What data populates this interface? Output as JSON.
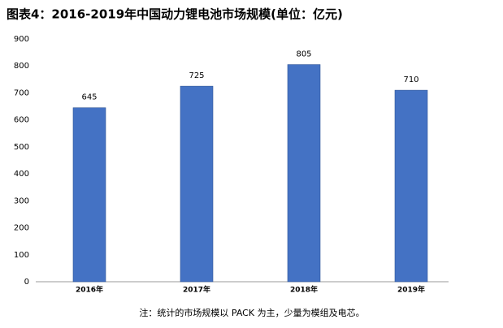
{
  "chart_data": {
    "type": "bar",
    "title": "图表4：2016-2019年中国动力锂电池市场规模(单位：亿元)",
    "categories": [
      "2016年",
      "2017年",
      "2018年",
      "2019年"
    ],
    "values": [
      645,
      725,
      805,
      710
    ],
    "color": "#4472c4",
    "ylim": [
      0,
      900
    ],
    "yticks": [
      0,
      100,
      200,
      300,
      400,
      500,
      600,
      700,
      800,
      900
    ],
    "grid": false,
    "note": "注：统计的市场规模以 PACK 为主，少量为模组及电芯。"
  }
}
